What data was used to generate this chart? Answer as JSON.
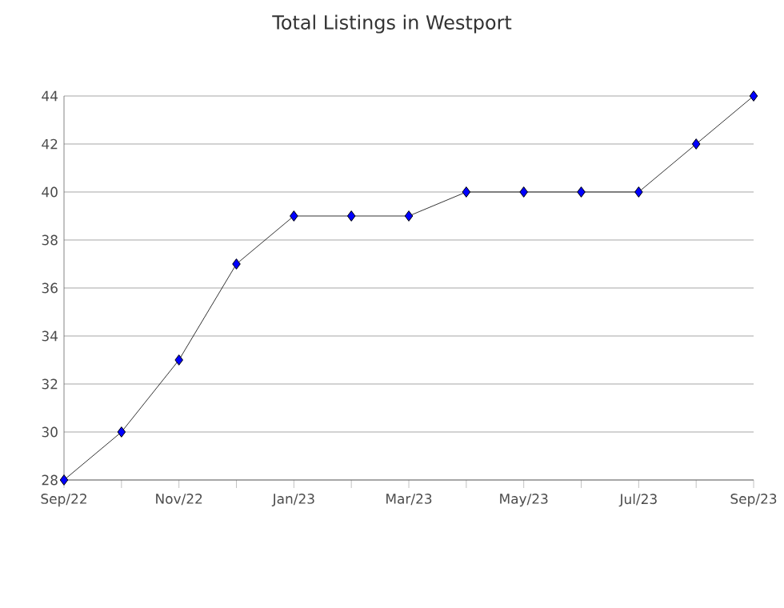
{
  "chart_data": {
    "type": "line",
    "title": "Total Listings in Westport",
    "categories": [
      "Sep/22",
      null,
      "Nov/22",
      null,
      "Jan/23",
      null,
      "Mar/23",
      null,
      "May/23",
      null,
      "Jul/23",
      null,
      "Sep/23"
    ],
    "series": [
      {
        "color": "#0000ff",
        "values": [
          28,
          30,
          33,
          37,
          39,
          39,
          39,
          40,
          40,
          40,
          40,
          42,
          44
        ]
      }
    ],
    "ylim": [
      28,
      44
    ],
    "yticks": [
      28,
      30,
      32,
      34,
      36,
      38,
      40,
      42,
      44
    ],
    "grid": "y",
    "marker": "diamond",
    "line_style": "solid"
  }
}
